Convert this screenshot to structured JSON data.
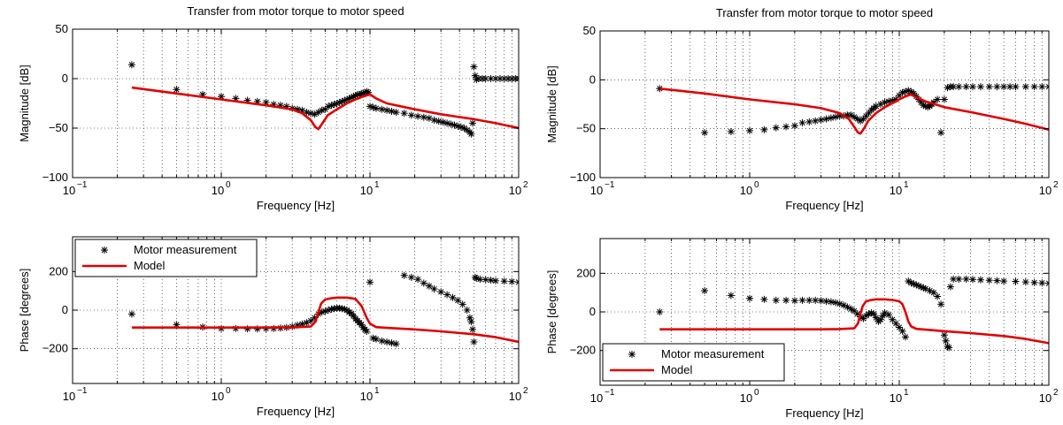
{
  "chart_data": [
    {
      "id": "left-magnitude",
      "type": "line",
      "title": "Transfer from motor torque to motor speed",
      "xlabel": "Frequency [Hz]",
      "ylabel": "Magnitude [dB]",
      "xscale": "log",
      "xlim": [
        0.1,
        100
      ],
      "ylim": [
        -100,
        50
      ],
      "yticks": [
        -100,
        -50,
        0,
        50
      ],
      "grid": true,
      "series": [
        {
          "name": "",
          "style": "markers",
          "color": "#000000",
          "x": [
            0.25,
            0.5,
            0.75,
            1.0,
            1.25,
            1.5,
            1.75,
            2.0,
            2.25,
            2.5,
            2.75,
            3.0,
            3.25,
            3.5,
            3.75,
            4.0,
            4.25,
            4.5,
            4.75,
            5.0,
            5.25,
            5.5,
            5.75,
            6.0,
            6.25,
            6.5,
            6.75,
            7.0,
            7.25,
            7.5,
            7.75,
            8.0,
            8.25,
            8.5,
            8.75,
            9.0,
            9.25,
            9.5,
            9.75,
            10.0,
            10.5,
            11.0,
            12.0,
            13.0,
            14.0,
            15.0,
            17.0,
            19.0,
            21.0,
            23.0,
            25.0,
            27.0,
            29.0,
            31.0,
            33.0,
            35.0,
            37.0,
            39.0,
            41.0,
            43.0,
            45.0,
            47.0,
            48.0,
            49.0,
            50.0,
            51.0,
            52.0,
            54.0,
            57.0,
            60.0,
            65.0,
            70.0,
            75.0,
            80.0,
            85.0,
            90.0,
            95.0,
            100.0
          ],
          "y": [
            14,
            -11,
            -16,
            -18,
            -20,
            -22,
            -23,
            -24,
            -26,
            -27,
            -28,
            -30,
            -31,
            -32,
            -34,
            -35,
            -36,
            -34,
            -32,
            -31,
            -28,
            -27,
            -26,
            -25,
            -24,
            -23,
            -22,
            -21,
            -20,
            -19,
            -18,
            -17,
            -16,
            -16,
            -15,
            -15,
            -14,
            -13,
            -14,
            -28,
            -29,
            -30,
            -31,
            -32,
            -33,
            -34,
            -35,
            -37,
            -38,
            -39,
            -40,
            -42,
            -43,
            -44,
            -45,
            -46,
            -47,
            -48,
            -49,
            -50,
            -52,
            -54,
            -56,
            -45,
            12,
            3,
            -1,
            0,
            0,
            0,
            0,
            0,
            0,
            0,
            0,
            0,
            0,
            0
          ]
        },
        {
          "name": "",
          "style": "line",
          "color": "#e00000",
          "x": [
            0.25,
            0.5,
            1.0,
            2.0,
            3.0,
            3.5,
            4.0,
            4.3,
            4.5,
            4.8,
            5.2,
            6.0,
            7.0,
            8.0,
            9.0,
            9.5,
            10.0,
            11.0,
            13.0,
            20.0,
            30.0,
            50.0,
            70.0,
            100.0
          ],
          "y": [
            -9,
            -15,
            -21,
            -27,
            -31,
            -35,
            -42,
            -49,
            -51,
            -45,
            -37,
            -31,
            -25,
            -21,
            -18,
            -17,
            -16,
            -20,
            -25,
            -31,
            -36,
            -41,
            -45,
            -50
          ]
        }
      ]
    },
    {
      "id": "right-magnitude",
      "type": "line",
      "title": "Transfer from motor torque to motor speed",
      "xlabel": "Frequency [Hz]",
      "ylabel": "Magnitude [dB]",
      "xscale": "log",
      "xlim": [
        0.1,
        100
      ],
      "ylim": [
        -100,
        50
      ],
      "yticks": [
        -100,
        -50,
        0,
        50
      ],
      "grid": true,
      "series": [
        {
          "name": "",
          "style": "markers",
          "color": "#000000",
          "x": [
            0.25,
            0.5,
            0.75,
            1.0,
            1.25,
            1.5,
            1.75,
            2.0,
            2.25,
            2.5,
            2.75,
            3.0,
            3.25,
            3.5,
            3.75,
            4.0,
            4.25,
            4.5,
            4.75,
            5.0,
            5.25,
            5.5,
            5.75,
            6.0,
            6.25,
            6.5,
            6.75,
            7.0,
            7.5,
            8.0,
            8.5,
            9.0,
            9.5,
            10.0,
            10.5,
            11.0,
            11.5,
            12.0,
            12.5,
            13.0,
            13.5,
            14.0,
            14.5,
            15.0,
            15.5,
            16.0,
            16.5,
            17.0,
            18.0,
            19.0,
            20.0,
            21.0,
            22.0,
            23.0,
            25.0,
            28.0,
            31.0,
            35.0,
            40.0,
            45.0,
            50.0,
            55.0,
            60.0,
            70.0,
            80.0,
            90.0,
            100.0
          ],
          "y": [
            -9,
            -54,
            -53,
            -52,
            -51,
            -49,
            -48,
            -47,
            -44,
            -43,
            -42,
            -41,
            -40,
            -39,
            -38,
            -37,
            -37,
            -36,
            -36,
            -38,
            -40,
            -42,
            -40,
            -37,
            -34,
            -31,
            -29,
            -27,
            -25,
            -23,
            -22,
            -21,
            -20,
            -16,
            -13,
            -12,
            -11,
            -12,
            -14,
            -17,
            -20,
            -23,
            -26,
            -27,
            -28,
            -27,
            -25,
            -23,
            -20,
            -54,
            -20,
            -8,
            -7,
            -7,
            -7,
            -7,
            -7,
            -7,
            -7,
            -7,
            -7,
            -7,
            -7,
            -7,
            -7,
            -7,
            -7
          ]
        },
        {
          "name": "",
          "style": "line",
          "color": "#e00000",
          "x": [
            0.25,
            0.5,
            1.0,
            2.0,
            3.0,
            4.0,
            4.6,
            5.0,
            5.3,
            5.5,
            5.8,
            6.2,
            7.0,
            8.0,
            9.0,
            10.0,
            11.0,
            12.0,
            13.0,
            15.0,
            20.0,
            30.0,
            50.0,
            70.0,
            100.0
          ],
          "y": [
            -9,
            -14,
            -20,
            -25,
            -29,
            -34,
            -40,
            -48,
            -54,
            -55,
            -50,
            -42,
            -34,
            -28,
            -24,
            -20,
            -17,
            -15,
            -18,
            -22,
            -28,
            -33,
            -40,
            -45,
            -51
          ]
        }
      ]
    },
    {
      "id": "left-phase",
      "type": "line",
      "title": "",
      "xlabel": "Frequency [Hz]",
      "ylabel": "Phase [degrees]",
      "xscale": "log",
      "xlim": [
        0.1,
        100
      ],
      "ylim": [
        -380,
        380
      ],
      "yticks": [
        -200,
        0,
        200
      ],
      "grid": true,
      "legend": "top-left",
      "series": [
        {
          "name": "Motor measurement",
          "style": "markers",
          "color": "#000000",
          "x": [
            0.25,
            0.5,
            0.75,
            1.0,
            1.25,
            1.5,
            1.75,
            2.0,
            2.25,
            2.5,
            2.75,
            3.0,
            3.25,
            3.5,
            3.75,
            4.0,
            4.25,
            4.5,
            4.75,
            5.0,
            5.25,
            5.5,
            5.75,
            6.0,
            6.25,
            6.5,
            6.75,
            7.0,
            7.25,
            7.5,
            7.75,
            8.0,
            8.25,
            8.5,
            8.75,
            9.0,
            9.25,
            9.5,
            10.0,
            10.5,
            11.0,
            12.0,
            13.0,
            14.0,
            15.0,
            17.0,
            19.0,
            21.0,
            23.0,
            25.0,
            27.0,
            30.0,
            33.0,
            36.0,
            39.0,
            42.0,
            45.0,
            47.0,
            48.0,
            49.0,
            50.0,
            51.0,
            52.0,
            55.0,
            60.0,
            65.0,
            70.0,
            80.0,
            90.0,
            100.0
          ],
          "y": [
            -20,
            -75,
            -88,
            -95,
            -95,
            -97,
            -97,
            -96,
            -95,
            -93,
            -90,
            -85,
            -78,
            -72,
            -65,
            -55,
            -40,
            -20,
            -10,
            -5,
            0,
            5,
            8,
            10,
            10,
            8,
            5,
            0,
            -10,
            -18,
            -30,
            -45,
            -55,
            -65,
            -75,
            -90,
            -100,
            -110,
            145,
            -145,
            -150,
            -160,
            -165,
            -170,
            -175,
            180,
            170,
            160,
            140,
            125,
            110,
            95,
            80,
            65,
            50,
            30,
            0,
            -40,
            -60,
            -100,
            -165,
            170,
            165,
            160,
            158,
            155,
            152,
            150,
            148,
            145
          ]
        },
        {
          "name": "Model",
          "style": "line",
          "color": "#e00000",
          "x": [
            0.25,
            0.5,
            1.0,
            2.0,
            3.0,
            4.0,
            4.3,
            4.5,
            4.7,
            5.0,
            5.5,
            6.0,
            7.0,
            8.0,
            8.8,
            9.5,
            10.0,
            11.0,
            13.0,
            20.0,
            30.0,
            50.0,
            70.0,
            100.0
          ],
          "y": [
            -90,
            -90,
            -90,
            -90,
            -89,
            -85,
            -60,
            -10,
            35,
            55,
            62,
            65,
            65,
            58,
            20,
            -40,
            -70,
            -88,
            -92,
            -100,
            -110,
            -125,
            -140,
            -165
          ]
        }
      ]
    },
    {
      "id": "right-phase",
      "type": "line",
      "title": "",
      "xlabel": "Frequency [Hz]",
      "ylabel": "Phase [degrees]",
      "xscale": "log",
      "xlim": [
        0.1,
        100
      ],
      "ylim": [
        -380,
        380
      ],
      "yticks": [
        -200,
        0,
        200
      ],
      "grid": true,
      "legend": "bottom-left",
      "series": [
        {
          "name": "Motor measurement",
          "style": "markers",
          "color": "#000000",
          "x": [
            0.25,
            0.5,
            0.75,
            1.0,
            1.25,
            1.5,
            1.75,
            2.0,
            2.25,
            2.5,
            2.75,
            3.0,
            3.25,
            3.5,
            3.75,
            4.0,
            4.25,
            4.5,
            4.75,
            5.0,
            5.25,
            5.5,
            5.75,
            6.0,
            6.25,
            6.5,
            6.75,
            7.0,
            7.25,
            7.5,
            7.75,
            8.0,
            8.5,
            9.0,
            9.5,
            10.0,
            10.5,
            11.0,
            11.5,
            12.0,
            12.5,
            13.0,
            13.5,
            14.0,
            14.5,
            15.0,
            16.0,
            17.0,
            18.0,
            19.0,
            20.0,
            20.5,
            21.0,
            21.5,
            22.0,
            23.0,
            25.0,
            28.0,
            31.0,
            35.0,
            40.0,
            45.0,
            50.0,
            60.0,
            70.0,
            80.0,
            90.0,
            100.0
          ],
          "y": [
            0,
            110,
            85,
            70,
            65,
            60,
            60,
            58,
            60,
            60,
            60,
            58,
            55,
            52,
            48,
            42,
            35,
            25,
            15,
            5,
            -10,
            -25,
            -35,
            -20,
            -10,
            -5,
            -10,
            -30,
            -50,
            -40,
            -20,
            -5,
            -15,
            -40,
            -60,
            -80,
            -100,
            -130,
            160,
            150,
            145,
            140,
            135,
            130,
            125,
            120,
            110,
            100,
            80,
            40,
            -120,
            -150,
            -180,
            -185,
            130,
            170,
            170,
            170,
            168,
            166,
            164,
            162,
            160,
            158,
            155,
            152,
            150,
            148
          ]
        },
        {
          "name": "Model",
          "style": "line",
          "color": "#e00000",
          "x": [
            0.25,
            0.5,
            1.0,
            2.0,
            3.0,
            4.0,
            5.0,
            5.3,
            5.5,
            5.7,
            6.0,
            6.5,
            7.0,
            8.0,
            9.0,
            10.0,
            10.5,
            11.0,
            11.5,
            12.0,
            13.0,
            15.0,
            20.0,
            30.0,
            50.0,
            70.0,
            100.0
          ],
          "y": [
            -90,
            -90,
            -90,
            -90,
            -90,
            -89,
            -85,
            -60,
            -10,
            30,
            55,
            62,
            65,
            65,
            62,
            55,
            40,
            0,
            -50,
            -75,
            -88,
            -92,
            -100,
            -110,
            -125,
            -140,
            -162
          ]
        }
      ]
    }
  ]
}
